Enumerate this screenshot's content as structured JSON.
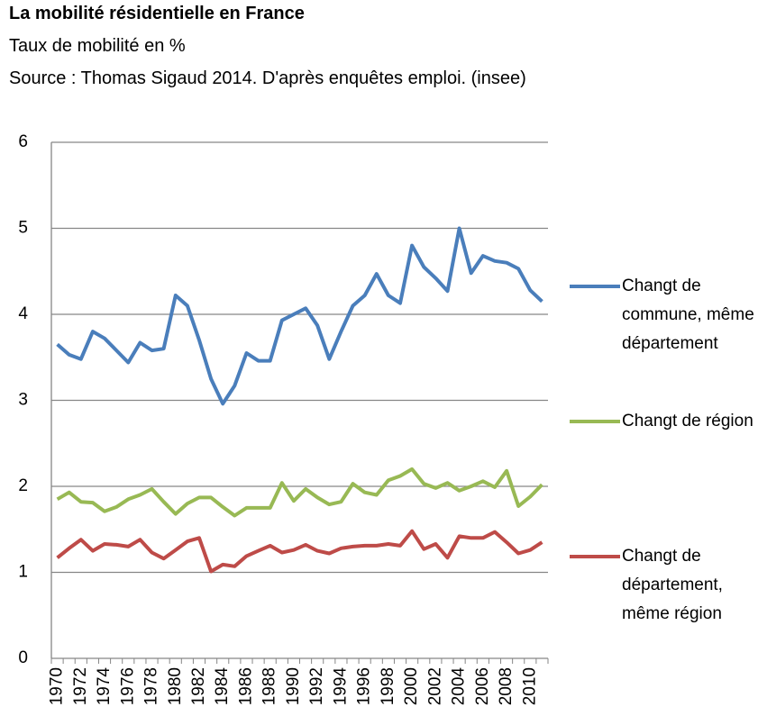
{
  "chart_data": {
    "type": "line",
    "title": "La mobilité résidentielle en France",
    "subtitle": "Taux  de mobilité en %",
    "source": "Source : Thomas Sigaud 2014.  D'après enquêtes emploi. (insee)",
    "categories": [
      "1970",
      null,
      "1972",
      null,
      "1974",
      null,
      "1976",
      null,
      "1978",
      null,
      "1980",
      null,
      "1982",
      null,
      "1984",
      null,
      "1986",
      null,
      "1988",
      null,
      "1990",
      null,
      "1992",
      null,
      "1994",
      null,
      "1996",
      null,
      "1998",
      null,
      "2000",
      null,
      "2002",
      null,
      "2004",
      null,
      "2006",
      null,
      "2008",
      null,
      "2010",
      null
    ],
    "series": [
      {
        "name": "Changt de commune, même département",
        "color": "#4a7ebb",
        "values": [
          3.65,
          3.53,
          3.48,
          3.8,
          3.72,
          3.58,
          3.44,
          3.67,
          3.58,
          3.6,
          4.22,
          4.1,
          3.7,
          3.25,
          2.96,
          3.17,
          3.55,
          3.46,
          3.46,
          3.93,
          4.0,
          4.07,
          3.87,
          3.48,
          3.8,
          4.1,
          4.22,
          4.47,
          4.22,
          4.13,
          4.8,
          4.55,
          4.42,
          4.27,
          5.0,
          4.48,
          4.68,
          4.62,
          4.6,
          4.53,
          4.28,
          4.15
        ]
      },
      {
        "name": "Changt de région",
        "color": "#98b954",
        "values": [
          1.85,
          1.93,
          1.82,
          1.81,
          1.71,
          1.76,
          1.85,
          1.9,
          1.97,
          1.82,
          1.68,
          1.8,
          1.87,
          1.87,
          1.76,
          1.66,
          1.75,
          1.75,
          1.75,
          2.04,
          1.83,
          1.97,
          1.87,
          1.79,
          1.82,
          2.03,
          1.93,
          1.9,
          2.07,
          2.12,
          2.2,
          2.03,
          1.98,
          2.04,
          1.95,
          2.0,
          2.06,
          1.99,
          2.18,
          1.77,
          1.88,
          2.02
        ]
      },
      {
        "name": "Changt de département, même région",
        "color": "#be4b48",
        "values": [
          1.17,
          1.28,
          1.38,
          1.25,
          1.33,
          1.32,
          1.3,
          1.38,
          1.23,
          1.16,
          1.26,
          1.36,
          1.4,
          1.01,
          1.09,
          1.07,
          1.19,
          1.25,
          1.31,
          1.23,
          1.26,
          1.32,
          1.25,
          1.22,
          1.28,
          1.3,
          1.31,
          1.31,
          1.33,
          1.31,
          1.48,
          1.27,
          1.33,
          1.17,
          1.42,
          1.4,
          1.4,
          1.47,
          1.35,
          1.22,
          1.26,
          1.35
        ]
      }
    ],
    "ylim": [
      0,
      6
    ],
    "yticks": [
      0,
      1,
      2,
      3,
      4,
      5,
      6
    ],
    "grid": true,
    "legend": "right"
  }
}
